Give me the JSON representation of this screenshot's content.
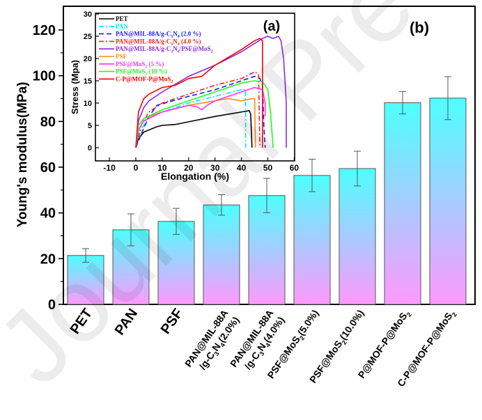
{
  "chart_data": [
    {
      "panel": "(b)",
      "type": "bar",
      "ylabel": "Young's modulus(MPa)",
      "xlabel": "",
      "ylim": [
        0,
        130
      ],
      "yticks": [
        0,
        20,
        40,
        60,
        80,
        100,
        120
      ],
      "categories": [
        {
          "text": "PET",
          "sub": null,
          "line2": null
        },
        {
          "text": "PAN",
          "sub": null,
          "line2": null
        },
        {
          "text": "PSF",
          "sub": null,
          "line2": null
        },
        {
          "text": "PAN@MIL-88A",
          "line2": "/g-C3N4(2.0%)"
        },
        {
          "text": "PAN@MIL-88A",
          "line2": "/g-C3N4(4.0%)"
        },
        {
          "text": "PSF@MoS2(5.0%)",
          "line2": null
        },
        {
          "text": "PSF@MoS2(10.0%)",
          "line2": null
        },
        {
          "text": "P@MOF-P@MoS2",
          "line2": null
        },
        {
          "text": "C-P@MOF-P@MoS2",
          "line2": null
        }
      ],
      "values": [
        21.4,
        32.6,
        36.3,
        43.5,
        47.6,
        56.4,
        59.4,
        88.2,
        90.2
      ],
      "errors": [
        3.0,
        7.0,
        5.7,
        4.5,
        7.5,
        7.1,
        7.6,
        4.9,
        9.4
      ],
      "bar_gradient": {
        "top": "#4dffff",
        "bottom": "#ff99ff"
      },
      "grid": false
    },
    {
      "panel": "(a)",
      "type": "line",
      "xlabel": "Elongation (%)",
      "ylabel": "Stress (Mpa)",
      "xlim": [
        -15,
        60
      ],
      "ylim": [
        -2.5,
        30
      ],
      "xticks": [
        -10,
        0,
        10,
        20,
        30,
        40,
        50,
        60
      ],
      "yticks": [
        0,
        5,
        10,
        15,
        20,
        25,
        30
      ],
      "legend_position": "top-left",
      "grid": false,
      "series": [
        {
          "name": "PET",
          "color": "#000000",
          "dash": "solid",
          "points": [
            [
              0,
              0
            ],
            [
              1,
              2
            ],
            [
              3,
              3.5
            ],
            [
              8,
              4.7
            ],
            [
              10,
              5
            ],
            [
              15,
              5.2
            ],
            [
              20,
              5.8
            ],
            [
              30,
              7
            ],
            [
              42,
              8.2
            ],
            [
              43,
              8.3
            ],
            [
              43.5,
              7.5
            ],
            [
              44,
              0
            ]
          ]
        },
        {
          "name": "PAN",
          "color": "#00e5ff",
          "dash": "dashdot",
          "points": [
            [
              0,
              0
            ],
            [
              2,
              4
            ],
            [
              5,
              7
            ],
            [
              10,
              8
            ],
            [
              20,
              10
            ],
            [
              30,
              11.5
            ],
            [
              40,
              13
            ],
            [
              41.5,
              13
            ],
            [
              41.6,
              0
            ]
          ]
        },
        {
          "name": "PAN@MIL-88A/g-C3N4 (2.0 %)",
          "color": "#1a1aff",
          "dash": "dash",
          "points": [
            [
              0,
              0
            ],
            [
              2,
              3
            ],
            [
              5,
              7
            ],
            [
              8,
              9.5
            ],
            [
              20,
              11.5
            ],
            [
              30,
              13
            ],
            [
              40,
              15
            ],
            [
              45,
              16
            ],
            [
              47,
              15.5
            ],
            [
              48,
              14
            ],
            [
              48.5,
              5
            ],
            [
              49,
              0
            ]
          ]
        },
        {
          "name": "PAN@MIL-88A/g-C3N4 (4.0 %)",
          "color": "#ff1a1a",
          "dash": "dashdot",
          "points": [
            [
              0,
              0
            ],
            [
              2,
              5
            ],
            [
              5,
              8
            ],
            [
              10,
              10
            ],
            [
              20,
              12
            ],
            [
              30,
              14
            ],
            [
              40,
              15.5
            ],
            [
              45,
              17
            ],
            [
              46.5,
              16.5
            ],
            [
              47,
              0
            ]
          ]
        },
        {
          "name": "PAN@MIL-88A/g-C3N4/PSF@MoS2",
          "color": "#8a2be2",
          "dash": "solid",
          "points": [
            [
              0,
              0
            ],
            [
              1,
              6
            ],
            [
              3,
              9
            ],
            [
              5,
              10.5
            ],
            [
              10,
              12.5
            ],
            [
              20,
              16
            ],
            [
              30,
              18.5
            ],
            [
              40,
              21.5
            ],
            [
              48,
              24.5
            ],
            [
              50,
              25
            ],
            [
              52,
              24.5
            ],
            [
              54,
              25
            ],
            [
              55,
              24
            ],
            [
              56,
              20
            ],
            [
              57,
              10
            ],
            [
              57,
              0
            ]
          ]
        },
        {
          "name": "PSF",
          "color": "#ff8c1a",
          "dash": "solid",
          "points": [
            [
              0,
              0
            ],
            [
              1,
              5
            ],
            [
              3,
              6.5
            ],
            [
              10,
              8
            ],
            [
              20,
              9.5
            ],
            [
              30,
              10.5
            ],
            [
              35,
              11
            ],
            [
              40,
              10.5
            ],
            [
              44,
              11
            ],
            [
              45,
              11
            ],
            [
              45.3,
              0
            ]
          ]
        },
        {
          "name": "PSF@MoS2 (5 %)",
          "color": "#ff33ff",
          "dash": "solid",
          "points": [
            [
              0,
              0
            ],
            [
              1,
              4
            ],
            [
              3,
              6
            ],
            [
              10,
              8
            ],
            [
              20,
              9.5
            ],
            [
              23,
              9.2
            ],
            [
              25,
              8.5
            ],
            [
              27,
              9.5
            ],
            [
              30,
              10.5
            ],
            [
              40,
              12.5
            ],
            [
              45,
              13.5
            ],
            [
              48,
              13
            ],
            [
              49,
              10
            ],
            [
              49,
              7
            ]
          ]
        },
        {
          "name": "PSF@MoS2 (10 %)",
          "color": "#1aff1a",
          "dash": "solid",
          "points": [
            [
              0,
              0
            ],
            [
              1,
              5
            ],
            [
              3,
              6.5
            ],
            [
              10,
              8.5
            ],
            [
              20,
              10.5
            ],
            [
              30,
              12.5
            ],
            [
              40,
              14.5
            ],
            [
              45,
              15
            ],
            [
              48,
              14.8
            ],
            [
              50,
              13
            ],
            [
              51,
              8
            ],
            [
              52,
              0
            ]
          ]
        },
        {
          "name": "C-P@MOF-P@MoS2",
          "color": "#ff0000",
          "dash": "solid",
          "points": [
            [
              0,
              0
            ],
            [
              1,
              8
            ],
            [
              3,
              11
            ],
            [
              5,
              12
            ],
            [
              10,
              13.5
            ],
            [
              15,
              14
            ],
            [
              20,
              15.5
            ],
            [
              25,
              16
            ],
            [
              30,
              18.5
            ],
            [
              40,
              22
            ],
            [
              45,
              24
            ],
            [
              47,
              24.5
            ],
            [
              48,
              24
            ],
            [
              48,
              0
            ]
          ]
        }
      ]
    }
  ],
  "watermark": "Journal Pre-proof"
}
